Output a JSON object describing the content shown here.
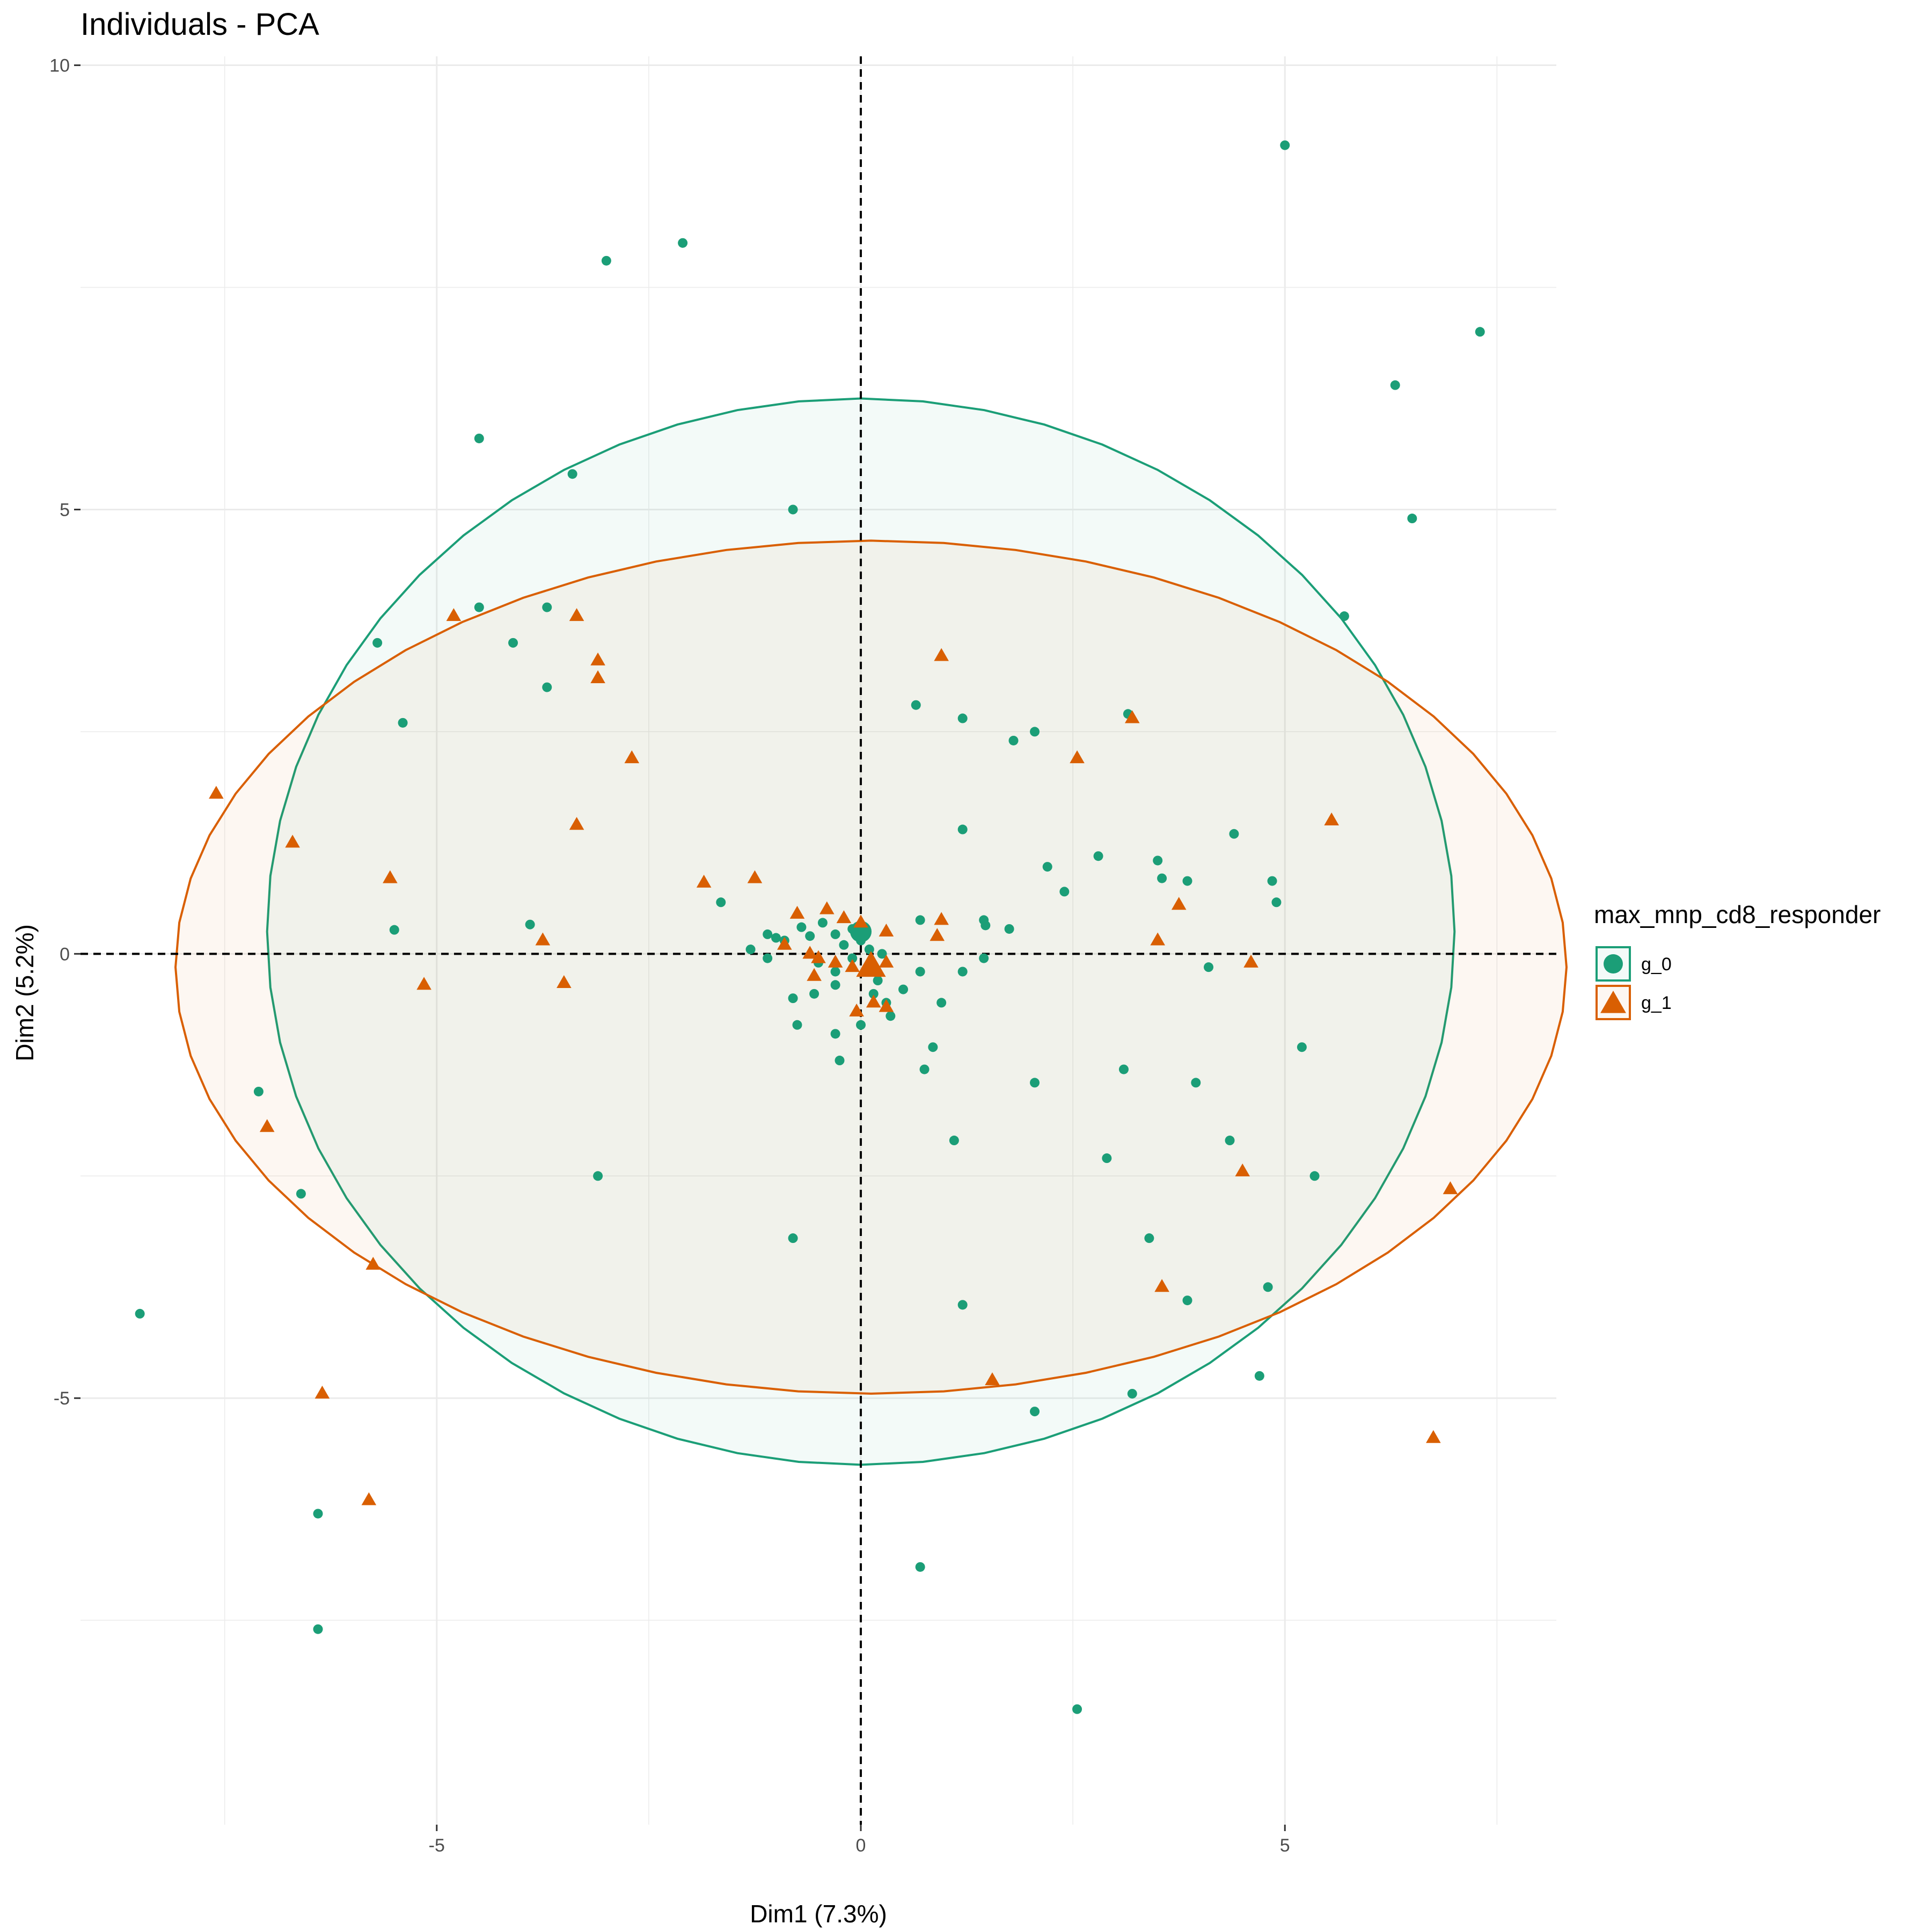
{
  "chart_data": {
    "type": "scatter",
    "title": "Individuals - PCA",
    "xlabel": "Dim1 (7.3%)",
    "ylabel": "Dim2 (5.2%)",
    "xlim": [
      -9.2,
      8.2
    ],
    "ylim": [
      -9.8,
      10.1
    ],
    "x_ticks": [
      -5,
      0,
      5
    ],
    "x_tick_labels": [
      "-5",
      "0",
      "5"
    ],
    "y_ticks": [
      -5,
      0,
      5,
      10
    ],
    "y_tick_labels": [
      "-5",
      "0",
      "5",
      "10"
    ],
    "reference_lines": {
      "x": 0,
      "y": 0,
      "style": "dashed"
    },
    "grid": true,
    "legend": {
      "title": "max_mnp_cd8_responder",
      "position": "right",
      "entries": [
        "g_0",
        "g_1"
      ]
    },
    "series": [
      {
        "name": "g_0",
        "color": "#1b9e77",
        "shape": "circle",
        "ellipse": {
          "cx": 0.0,
          "cy": 0.25,
          "rx": 7.0,
          "ry": 6.0
        },
        "points": [
          [
            5.0,
            9.1
          ],
          [
            -2.1,
            8.0
          ],
          [
            -3.0,
            7.8
          ],
          [
            7.3,
            7.0
          ],
          [
            6.3,
            6.4
          ],
          [
            -4.5,
            5.8
          ],
          [
            -3.4,
            5.4
          ],
          [
            -0.8,
            5.0
          ],
          [
            6.5,
            4.9
          ],
          [
            5.7,
            3.8
          ],
          [
            -5.7,
            3.5
          ],
          [
            -4.5,
            3.9
          ],
          [
            -3.7,
            3.9
          ],
          [
            -4.1,
            3.5
          ],
          [
            -3.7,
            3.0
          ],
          [
            -5.4,
            2.6
          ],
          [
            0.65,
            2.8
          ],
          [
            1.2,
            2.65
          ],
          [
            3.15,
            2.7
          ],
          [
            1.8,
            2.4
          ],
          [
            2.05,
            2.5
          ],
          [
            1.2,
            1.4
          ],
          [
            4.4,
            1.35
          ],
          [
            2.2,
            0.98
          ],
          [
            2.8,
            1.1
          ],
          [
            3.5,
            1.05
          ],
          [
            2.4,
            0.7
          ],
          [
            3.55,
            0.85
          ],
          [
            3.85,
            0.82
          ],
          [
            4.85,
            0.82
          ],
          [
            4.9,
            0.58
          ],
          [
            -5.5,
            0.27
          ],
          [
            -3.9,
            0.33
          ],
          [
            -1.65,
            0.58
          ],
          [
            0.7,
            0.38
          ],
          [
            1.45,
            0.38
          ],
          [
            1.47,
            0.32
          ],
          [
            1.75,
            0.28
          ],
          [
            -1.3,
            0.05
          ],
          [
            -1.1,
            0.22
          ],
          [
            -1.0,
            0.18
          ],
          [
            -0.9,
            0.15
          ],
          [
            -0.7,
            0.3
          ],
          [
            -0.6,
            0.2
          ],
          [
            -0.45,
            0.35
          ],
          [
            -0.3,
            0.22
          ],
          [
            -0.2,
            0.1
          ],
          [
            -0.1,
            0.28
          ],
          [
            0.0,
            0.15
          ],
          [
            0.1,
            0.05
          ],
          [
            0.25,
            0.0
          ],
          [
            -0.5,
            -0.1
          ],
          [
            -0.3,
            -0.2
          ],
          [
            -0.1,
            -0.05
          ],
          [
            0.1,
            -0.2
          ],
          [
            0.2,
            -0.3
          ],
          [
            -1.1,
            -0.05
          ],
          [
            -0.8,
            -0.5
          ],
          [
            -0.55,
            -0.45
          ],
          [
            -0.3,
            -0.35
          ],
          [
            0.15,
            -0.45
          ],
          [
            0.3,
            -0.55
          ],
          [
            0.5,
            -0.4
          ],
          [
            0.7,
            -0.2
          ],
          [
            0.95,
            -0.55
          ],
          [
            -0.75,
            -0.8
          ],
          [
            -0.3,
            -0.9
          ],
          [
            0.0,
            -0.8
          ],
          [
            0.35,
            -0.7
          ],
          [
            1.45,
            -0.05
          ],
          [
            1.2,
            -0.2
          ],
          [
            0.85,
            -1.05
          ],
          [
            0.75,
            -1.3
          ],
          [
            -0.25,
            -1.2
          ],
          [
            4.1,
            -0.15
          ],
          [
            5.2,
            -1.05
          ],
          [
            2.05,
            -1.45
          ],
          [
            3.1,
            -1.3
          ],
          [
            3.95,
            -1.45
          ],
          [
            1.1,
            -2.1
          ],
          [
            2.9,
            -2.3
          ],
          [
            4.35,
            -2.1
          ],
          [
            5.35,
            -2.5
          ],
          [
            -3.1,
            -2.5
          ],
          [
            -7.1,
            -1.55
          ],
          [
            -6.6,
            -2.7
          ],
          [
            -0.8,
            -3.2
          ],
          [
            3.4,
            -3.2
          ],
          [
            4.8,
            -3.75
          ],
          [
            3.85,
            -3.9
          ],
          [
            1.2,
            -3.95
          ],
          [
            -8.5,
            -4.05
          ],
          [
            4.7,
            -4.75
          ],
          [
            3.2,
            -4.95
          ],
          [
            2.05,
            -5.15
          ],
          [
            -6.4,
            -6.3
          ],
          [
            0.7,
            -6.9
          ],
          [
            -6.4,
            -7.6
          ],
          [
            2.55,
            -8.5
          ]
        ]
      },
      {
        "name": "g_1",
        "color": "#d95f02",
        "shape": "triangle",
        "ellipse": {
          "cx": 0.12,
          "cy": -0.15,
          "rx": 8.2,
          "ry": 4.8
        },
        "points": [
          [
            -4.8,
            3.8
          ],
          [
            -3.35,
            3.8
          ],
          [
            -3.1,
            3.3
          ],
          [
            -3.1,
            3.1
          ],
          [
            0.95,
            3.35
          ],
          [
            3.2,
            2.65
          ],
          [
            2.55,
            2.2
          ],
          [
            -2.7,
            2.2
          ],
          [
            -7.6,
            1.8
          ],
          [
            5.55,
            1.5
          ],
          [
            -3.35,
            1.45
          ],
          [
            -6.7,
            1.25
          ],
          [
            -5.55,
            0.85
          ],
          [
            -1.85,
            0.8
          ],
          [
            -1.25,
            0.85
          ],
          [
            3.75,
            0.55
          ],
          [
            -0.75,
            0.45
          ],
          [
            -0.4,
            0.5
          ],
          [
            -0.2,
            0.4
          ],
          [
            0.0,
            0.35
          ],
          [
            0.3,
            0.25
          ],
          [
            0.95,
            0.38
          ],
          [
            0.9,
            0.2
          ],
          [
            3.5,
            0.15
          ],
          [
            -3.75,
            0.15
          ],
          [
            -0.9,
            0.1
          ],
          [
            -0.6,
            0.0
          ],
          [
            -0.5,
            -0.05
          ],
          [
            -0.3,
            -0.1
          ],
          [
            -0.1,
            -0.15
          ],
          [
            0.05,
            -0.2
          ],
          [
            0.3,
            -0.1
          ],
          [
            -0.55,
            -0.25
          ],
          [
            0.15,
            -0.55
          ],
          [
            0.3,
            -0.6
          ],
          [
            -0.05,
            -0.65
          ],
          [
            -5.15,
            -0.35
          ],
          [
            -3.5,
            -0.33
          ],
          [
            4.6,
            -0.1
          ],
          [
            -7.0,
            -1.95
          ],
          [
            4.5,
            -2.45
          ],
          [
            6.95,
            -2.65
          ],
          [
            -5.75,
            -3.5
          ],
          [
            3.55,
            -3.75
          ],
          [
            1.55,
            -4.8
          ],
          [
            -6.35,
            -4.95
          ],
          [
            6.75,
            -5.45
          ],
          [
            -5.8,
            -6.15
          ]
        ]
      }
    ]
  }
}
